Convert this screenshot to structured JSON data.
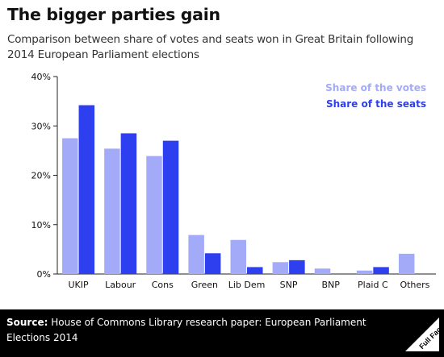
{
  "header": {
    "title": "The bigger parties gain",
    "subtitle": "Comparison between share of votes and seats won in Great Britain following 2014 European Parliament elections"
  },
  "chart_data": {
    "type": "bar",
    "categories": [
      "UKIP",
      "Labour",
      "Cons",
      "Green",
      "Lib Dem",
      "SNP",
      "BNP",
      "Plaid C",
      "Others"
    ],
    "series": [
      {
        "name": "Share of the votes",
        "color": "#a3aaf8",
        "values": [
          27.5,
          25.4,
          23.9,
          7.9,
          6.9,
          2.4,
          1.1,
          0.7,
          4.1
        ]
      },
      {
        "name": "Share of the seats",
        "color": "#2d3fef",
        "values": [
          34.2,
          28.5,
          27.0,
          4.2,
          1.4,
          2.8,
          0,
          1.4,
          0
        ]
      }
    ],
    "ylim": [
      0,
      40
    ],
    "yticks": [
      0,
      10,
      20,
      30,
      40
    ],
    "ytick_labels": [
      "0%",
      "10%",
      "20%",
      "30%",
      "40%"
    ],
    "legend_position": "top-right",
    "grid": false
  },
  "footer": {
    "source_label": "Source:",
    "source_text": "House of Commons Library research paper: European Parliament Elections 2014",
    "logo_text": "Full Fact"
  }
}
